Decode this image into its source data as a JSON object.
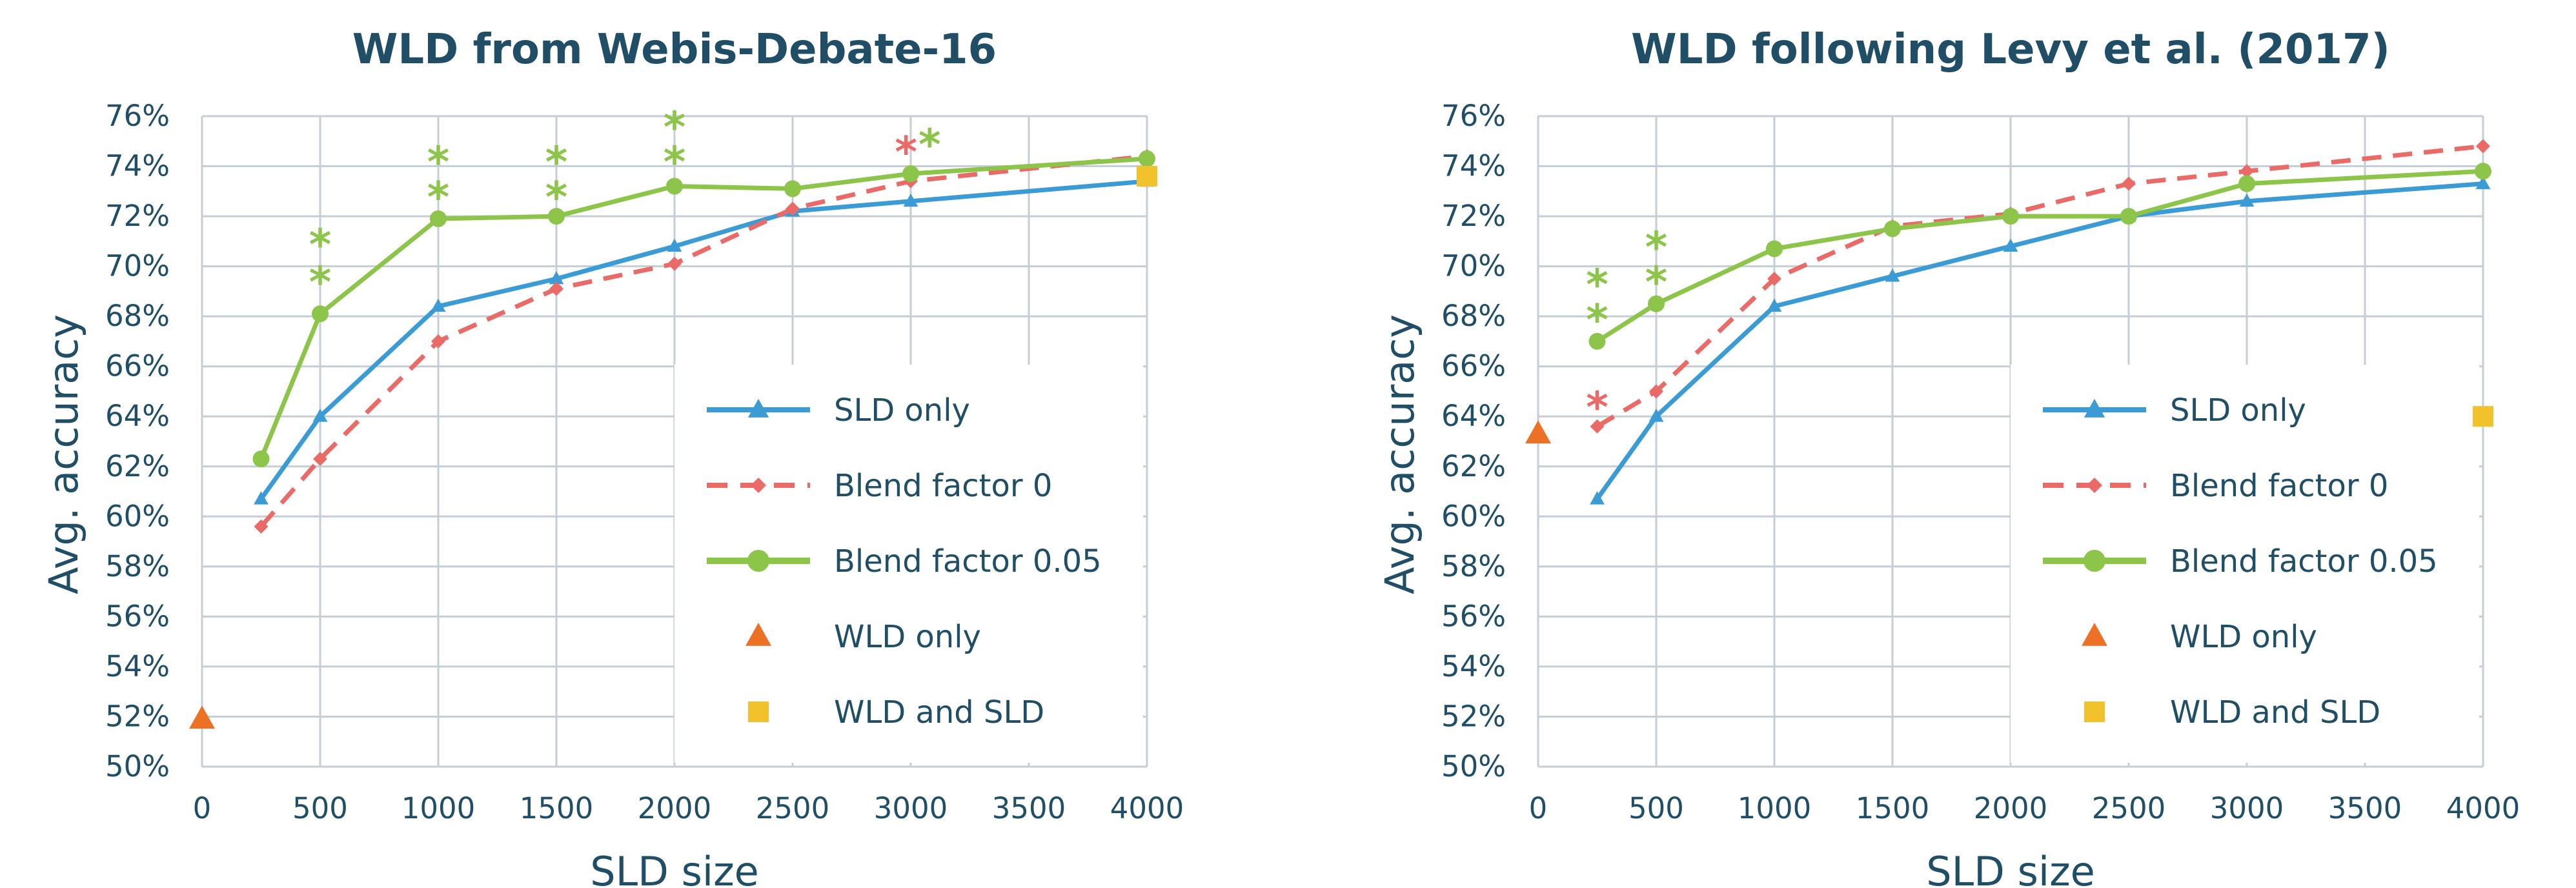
{
  "colors": {
    "sld_only": "#3a9bd5",
    "blend_0": "#e96a66",
    "blend_005": "#8dc44a",
    "wld_only": "#ed7124",
    "wld_and_sld": "#f2c22c",
    "grid": "#c5ced6",
    "text": "#1f4e66"
  },
  "legend": [
    {
      "label": "SLD only",
      "key": "sld_only",
      "marker": "triangle",
      "line": "solid"
    },
    {
      "label": "Blend factor 0",
      "key": "blend_0",
      "marker": "diamond",
      "line": "dashed"
    },
    {
      "label": "Blend factor 0.05",
      "key": "blend_005",
      "marker": "circle",
      "line": "solid"
    },
    {
      "label": "WLD only",
      "key": "wld_only",
      "marker": "triangle",
      "line": "none"
    },
    {
      "label": "WLD and SLD",
      "key": "wld_and_sld",
      "marker": "square",
      "line": "none"
    }
  ],
  "chart_data": [
    {
      "type": "line",
      "title": "WLD from Webis-Debate-16",
      "xlabel": "SLD size",
      "ylabel": "Avg. accuracy",
      "xlim": [
        0,
        4000
      ],
      "ylim": [
        50,
        76
      ],
      "x_ticks": [
        "0",
        "500",
        "1000",
        "1500",
        "2000",
        "2500",
        "3000",
        "3500",
        "4000"
      ],
      "y_ticks": [
        "50%",
        "52%",
        "54%",
        "56%",
        "58%",
        "60%",
        "62%",
        "64%",
        "66%",
        "68%",
        "70%",
        "72%",
        "74%",
        "76%"
      ],
      "grid": true,
      "legend_position": "bottom-right",
      "series": [
        {
          "name": "SLD only",
          "key": "sld_only",
          "x": [
            250,
            500,
            1000,
            1500,
            2000,
            2500,
            3000,
            4000
          ],
          "y": [
            60.7,
            64.0,
            68.4,
            69.5,
            70.8,
            72.2,
            72.6,
            73.4
          ]
        },
        {
          "name": "Blend factor 0",
          "key": "blend_0",
          "x": [
            250,
            500,
            1000,
            1500,
            2000,
            2500,
            3000,
            4000
          ],
          "y": [
            59.6,
            62.3,
            67.0,
            69.1,
            70.1,
            72.3,
            73.4,
            74.4
          ]
        },
        {
          "name": "Blend factor 0.05",
          "key": "blend_005",
          "x": [
            250,
            500,
            1000,
            1500,
            2000,
            2500,
            3000,
            4000
          ],
          "y": [
            62.3,
            68.1,
            71.9,
            72.0,
            73.2,
            73.1,
            73.7,
            74.3
          ]
        },
        {
          "name": "WLD only",
          "key": "wld_only",
          "x": [
            0
          ],
          "y": [
            51.9
          ]
        },
        {
          "name": "WLD and SLD",
          "key": "wld_and_sld",
          "x": [
            4000
          ],
          "y": [
            73.6
          ]
        }
      ],
      "annotations": [
        {
          "text": "*",
          "key": "blend_005",
          "x": 500,
          "y": 69.6
        },
        {
          "text": "*",
          "key": "blend_005",
          "x": 500,
          "y": 71.1
        },
        {
          "text": "*",
          "key": "blend_005",
          "x": 1000,
          "y": 73.0
        },
        {
          "text": "*",
          "key": "blend_005",
          "x": 1000,
          "y": 74.4
        },
        {
          "text": "*",
          "key": "blend_005",
          "x": 1500,
          "y": 73.0
        },
        {
          "text": "*",
          "key": "blend_005",
          "x": 1500,
          "y": 74.4
        },
        {
          "text": "*",
          "key": "blend_005",
          "x": 2000,
          "y": 74.4
        },
        {
          "text": "*",
          "key": "blend_005",
          "x": 2000,
          "y": 75.8
        },
        {
          "text": "*",
          "key": "blend_0",
          "x": 2980,
          "y": 74.8
        },
        {
          "text": "*",
          "key": "blend_005",
          "x": 3080,
          "y": 75.1
        }
      ]
    },
    {
      "type": "line",
      "title": "WLD following Levy et al. (2017)",
      "xlabel": "SLD size",
      "ylabel": "Avg. accuracy",
      "xlim": [
        0,
        4000
      ],
      "ylim": [
        50,
        76
      ],
      "x_ticks": [
        "0",
        "500",
        "1000",
        "1500",
        "2000",
        "2500",
        "3000",
        "3500",
        "4000"
      ],
      "y_ticks": [
        "50%",
        "52%",
        "54%",
        "56%",
        "58%",
        "60%",
        "62%",
        "64%",
        "66%",
        "68%",
        "70%",
        "72%",
        "74%",
        "76%"
      ],
      "grid": true,
      "legend_position": "bottom-right",
      "series": [
        {
          "name": "SLD only",
          "key": "sld_only",
          "x": [
            250,
            500,
            1000,
            1500,
            2000,
            2500,
            3000,
            4000
          ],
          "y": [
            60.7,
            64.0,
            68.4,
            69.6,
            70.8,
            72.0,
            72.6,
            73.3
          ]
        },
        {
          "name": "Blend factor 0",
          "key": "blend_0",
          "x": [
            250,
            500,
            1000,
            1500,
            2000,
            2500,
            3000,
            4000
          ],
          "y": [
            63.6,
            65.0,
            69.5,
            71.6,
            72.1,
            73.3,
            73.8,
            74.8
          ]
        },
        {
          "name": "Blend factor 0.05",
          "key": "blend_005",
          "x": [
            250,
            500,
            1000,
            1500,
            2000,
            2500,
            3000,
            4000
          ],
          "y": [
            67.0,
            68.5,
            70.7,
            71.5,
            72.0,
            72.0,
            73.3,
            73.8
          ]
        },
        {
          "name": "WLD only",
          "key": "wld_only",
          "x": [
            0
          ],
          "y": [
            63.3
          ]
        },
        {
          "name": "WLD and SLD",
          "key": "wld_and_sld",
          "x": [
            4000
          ],
          "y": [
            64.0
          ]
        }
      ],
      "annotations": [
        {
          "text": "*",
          "key": "blend_0",
          "x": 250,
          "y": 64.6
        },
        {
          "text": "*",
          "key": "blend_005",
          "x": 250,
          "y": 68.1
        },
        {
          "text": "*",
          "key": "blend_005",
          "x": 250,
          "y": 69.5
        },
        {
          "text": "*",
          "key": "blend_005",
          "x": 500,
          "y": 69.6
        },
        {
          "text": "*",
          "key": "blend_005",
          "x": 500,
          "y": 71.0
        }
      ]
    }
  ]
}
